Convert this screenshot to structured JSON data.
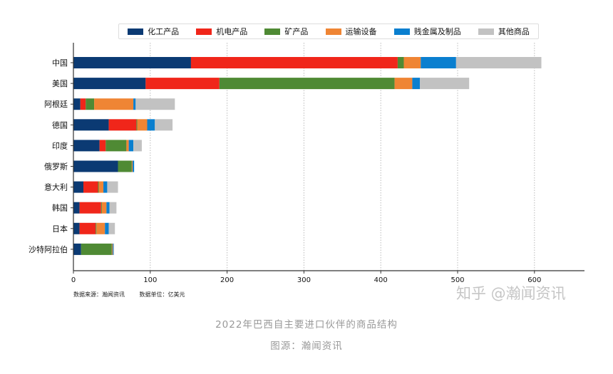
{
  "chart_data": {
    "type": "bar",
    "orientation": "horizontal",
    "stacked": true,
    "categories": [
      "中国",
      "美国",
      "阿根廷",
      "德国",
      "印度",
      "俄罗斯",
      "意大利",
      "韩国",
      "日本",
      "沙特阿拉伯"
    ],
    "series": [
      {
        "name": "化工产品",
        "color": "#0b3a73",
        "values": [
          153,
          94,
          9,
          46,
          34,
          58,
          13,
          8,
          8,
          10
        ]
      },
      {
        "name": "机电产品",
        "color": "#f0261a",
        "values": [
          269,
          96,
          7,
          36,
          8,
          0,
          19,
          28,
          21,
          0
        ]
      },
      {
        "name": "矿产品",
        "color": "#4f8a34",
        "values": [
          8,
          228,
          11,
          1,
          27,
          18,
          1,
          1,
          1,
          40
        ]
      },
      {
        "name": "运输设备",
        "color": "#ef8534",
        "values": [
          22,
          23,
          51,
          13,
          3,
          1,
          6,
          6,
          11,
          1
        ]
      },
      {
        "name": "贱金属及制品",
        "color": "#0a7fcf",
        "values": [
          46,
          10,
          3,
          10,
          6,
          2,
          5,
          4,
          5,
          1
        ]
      },
      {
        "name": "其他商品",
        "color": "#c2c2c2",
        "values": [
          111,
          64,
          51,
          23,
          11,
          0,
          14,
          9,
          8,
          1
        ]
      }
    ],
    "xlim": [
      0,
      665
    ],
    "xticks": [
      "0",
      "100",
      "200",
      "300",
      "400",
      "500",
      "600"
    ],
    "xtick_values": [
      0,
      100,
      200,
      300,
      400,
      500,
      600
    ],
    "grid": "vertical dotted",
    "legend_position": "top"
  },
  "source_note": "数据来源：瀚闻资讯",
  "unit_note": "数据单位：亿美元",
  "watermark": "知乎 @瀚闻资讯",
  "caption": "2022年巴西自主要进口伙伴的商品结构",
  "caption_source": "图源：瀚闻资讯"
}
